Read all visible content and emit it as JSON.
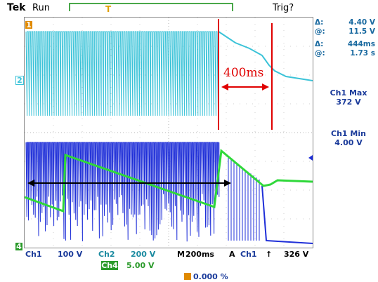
{
  "header": {
    "brand": "Tek",
    "state": "Run",
    "trigger_status": "Trig?"
  },
  "cursor_readout": {
    "delta_v_label": "Δ:",
    "delta_v": "4.40 V",
    "at_v_label": "@:",
    "at_v": "11.5 V",
    "delta_t_label": "Δ:",
    "delta_t": "444ms",
    "at_t_label": "@:",
    "at_t": "1.73 s"
  },
  "measurements": {
    "max_label": "Ch1 Max",
    "max_value": "372 V",
    "min_label": "Ch1 Min",
    "min_value": "4.00 V"
  },
  "markers": {
    "ch1": "1",
    "ch2": "2",
    "ch4": "4"
  },
  "annotation": {
    "interval": "400ms"
  },
  "footer": {
    "ch1_label": "Ch1",
    "ch1_scale": "100 V",
    "ch2_label": "Ch2",
    "ch2_scale": "200 V",
    "time_label": "M",
    "time_scale": "200ms",
    "trig_mode": "A",
    "trig_source": "Ch1",
    "trig_slope_icon": "rising-edge-icon",
    "trig_level": "326 V",
    "ch4_label": "Ch4",
    "ch4_scale": "5.00 V",
    "trigger_position": "0.000 %"
  },
  "colors": {
    "ch1": "#1f2fd8",
    "ch2": "#3bc3d8",
    "ch4": "#2fd83a",
    "annotation": "#e00000"
  }
}
